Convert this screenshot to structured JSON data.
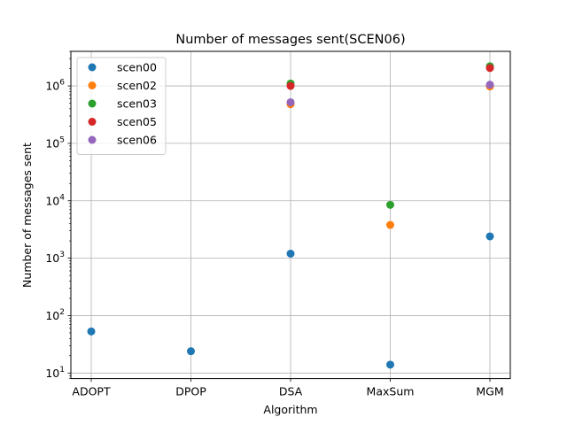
{
  "chart_data": {
    "type": "scatter",
    "title": "Number of messages sent(SCEN06)",
    "xlabel": "Algorithm",
    "ylabel": "Number of messages sent",
    "categories": [
      "ADOPT",
      "DPOP",
      "DSA",
      "MaxSum",
      "MGM"
    ],
    "yscale": "log",
    "ylim": [
      8,
      4000000
    ],
    "yticks": [
      {
        "value": 10,
        "base": "10",
        "exp": "1"
      },
      {
        "value": 100,
        "base": "10",
        "exp": "2"
      },
      {
        "value": 1000,
        "base": "10",
        "exp": "3"
      },
      {
        "value": 10000,
        "base": "10",
        "exp": "4"
      },
      {
        "value": 100000,
        "base": "10",
        "exp": "5"
      },
      {
        "value": 1000000,
        "base": "10",
        "exp": "6"
      }
    ],
    "grid": true,
    "legend_position": "top-left",
    "series": [
      {
        "name": "scen00",
        "color": "#1f77b4",
        "values": [
          53,
          24,
          1200,
          14,
          2400
        ]
      },
      {
        "name": "scen02",
        "color": "#ff7f0e",
        "values": [
          null,
          null,
          480000,
          3800,
          980000
        ]
      },
      {
        "name": "scen03",
        "color": "#2ca02c",
        "values": [
          null,
          null,
          1100000,
          8500,
          2200000
        ]
      },
      {
        "name": "scen05",
        "color": "#d62728",
        "values": [
          null,
          null,
          1000000,
          null,
          2050000
        ]
      },
      {
        "name": "scen06",
        "color": "#9467bd",
        "values": [
          null,
          null,
          520000,
          null,
          1050000
        ]
      }
    ]
  }
}
